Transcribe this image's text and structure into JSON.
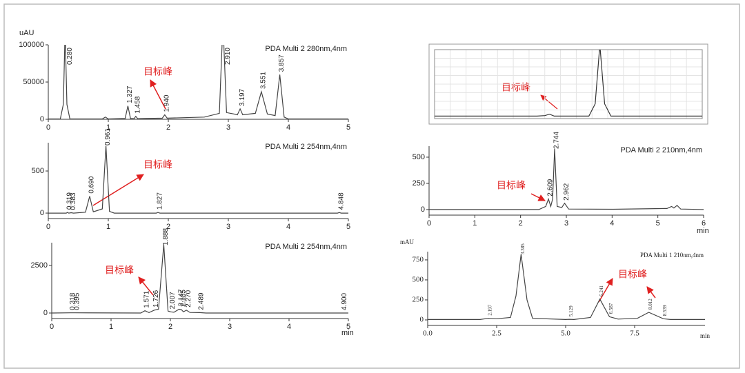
{
  "chart_data": [
    {
      "type": "line",
      "title": "PDA Multi 2 280nm,4nm",
      "y_label": "uAU",
      "annotation": "目标峰",
      "xlim": [
        0,
        5
      ],
      "ylim": [
        0,
        100000
      ],
      "xticks": [
        0,
        1,
        2,
        3,
        4,
        5
      ],
      "yticks": [
        0,
        50000,
        100000
      ],
      "color": "#444444",
      "x": [
        0,
        0.2,
        0.25,
        0.28,
        0.31,
        0.36,
        0.9,
        0.95,
        1.0,
        1.28,
        1.327,
        1.37,
        1.43,
        1.458,
        1.49,
        1.9,
        1.94,
        1.98,
        2.6,
        2.85,
        2.91,
        2.97,
        3.1,
        3.15,
        3.197,
        3.24,
        3.45,
        3.551,
        3.65,
        3.78,
        3.857,
        3.93,
        4.0,
        5.0
      ],
      "values": [
        500,
        500,
        20000,
        120000,
        20000,
        500,
        500,
        3000,
        500,
        1000,
        18000,
        1000,
        800,
        4000,
        800,
        1500,
        6000,
        1500,
        3000,
        8000,
        130000,
        9000,
        7000,
        6000,
        14000,
        6000,
        8000,
        37000,
        7000,
        5000,
        60000,
        3000,
        500,
        500
      ],
      "peaks": [
        {
          "label": "0.280",
          "x": 0.28
        },
        {
          "label": "1.327",
          "x": 1.327
        },
        {
          "label": "1.458",
          "x": 1.458
        },
        {
          "label": "1.940",
          "x": 1.94
        },
        {
          "label": "2.910",
          "x": 2.91
        },
        {
          "label": "3.197",
          "x": 3.197
        },
        {
          "label": "3.551",
          "x": 3.551
        },
        {
          "label": "3.857",
          "x": 3.857
        }
      ]
    },
    {
      "type": "line",
      "title": "PDA Multi 2 254nm,4nm",
      "annotation": "目标峰",
      "xlim": [
        0,
        5
      ],
      "ylim": [
        -65,
        836
      ],
      "xticks": [
        0,
        1,
        2,
        3,
        4,
        5
      ],
      "yticks": [
        0,
        500
      ],
      "color": "#444444",
      "x": [
        0,
        0.3,
        0.319,
        0.34,
        0.383,
        0.42,
        0.62,
        0.69,
        0.75,
        0.9,
        0.961,
        1.02,
        1.1,
        1.8,
        1.827,
        1.86,
        4.82,
        4.848,
        4.88,
        5.0
      ],
      "values": [
        0,
        0,
        8,
        0,
        5,
        0,
        10,
        200,
        15,
        50,
        800,
        20,
        0,
        0,
        8,
        0,
        0,
        6,
        0,
        0
      ],
      "peaks": [
        {
          "label": "0.319",
          "x": 0.319
        },
        {
          "label": "0.383",
          "x": 0.383
        },
        {
          "label": "0.690",
          "x": 0.69
        },
        {
          "label": "0.961",
          "x": 0.961
        },
        {
          "label": "1.827",
          "x": 1.827
        },
        {
          "label": "4.848",
          "x": 4.848
        }
      ]
    },
    {
      "type": "line",
      "title": "PDA Multi 2 254nm,4nm",
      "x_label": "min",
      "annotation": "目标峰",
      "xlim": [
        0,
        5
      ],
      "ylim": [
        -290,
        3696
      ],
      "xticks": [
        0,
        1,
        2,
        3,
        4,
        5
      ],
      "yticks": [
        0,
        2500
      ],
      "color": "#444444",
      "x": [
        0,
        0.318,
        0.395,
        1.5,
        1.571,
        1.64,
        1.726,
        1.8,
        1.888,
        1.96,
        2.007,
        2.06,
        2.147,
        2.185,
        2.22,
        2.27,
        2.33,
        2.489,
        2.6,
        4.9,
        5.0
      ],
      "values": [
        0,
        10,
        10,
        0,
        120,
        20,
        150,
        200,
        3600,
        100,
        60,
        40,
        200,
        180,
        60,
        150,
        30,
        20,
        0,
        0,
        0
      ],
      "peaks": [
        {
          "label": "0.318",
          "x": 0.318
        },
        {
          "label": "0.395",
          "x": 0.395
        },
        {
          "label": "1.571",
          "x": 1.571
        },
        {
          "label": "1.726",
          "x": 1.726
        },
        {
          "label": "1.888",
          "x": 1.888
        },
        {
          "label": "2.007",
          "x": 2.007
        },
        {
          "label": "2.147",
          "x": 2.147
        },
        {
          "label": "2.185",
          "x": 2.185
        },
        {
          "label": "2.270",
          "x": 2.27
        },
        {
          "label": "2.489",
          "x": 2.489
        },
        {
          "label": "4.900",
          "x": 4.9
        }
      ]
    },
    {
      "type": "line",
      "annotation": "目标峰",
      "xlim": [
        0,
        17
      ],
      "ylim": [
        0,
        1.4
      ],
      "color": "#333333",
      "x": [
        0,
        6.5,
        7.0,
        7.3,
        7.6,
        9.8,
        10.2,
        10.5,
        10.8,
        11.2,
        13,
        17
      ],
      "values": [
        0.05,
        0.05,
        0.06,
        0.09,
        0.05,
        0.05,
        0.3,
        1.5,
        0.3,
        0.05,
        0.05,
        0.05
      ]
    },
    {
      "type": "line",
      "title": "PDA Multi 2 210nm,4nm",
      "x_label": "min",
      "annotation": "目标峰",
      "xlim": [
        0,
        6
      ],
      "ylim": [
        -53,
        605
      ],
      "xticks": [
        0,
        1,
        2,
        3,
        4,
        5,
        6
      ],
      "yticks": [
        0,
        250,
        500
      ],
      "color": "#444444",
      "x": [
        0,
        2.4,
        2.55,
        2.609,
        2.66,
        2.7,
        2.744,
        2.8,
        2.9,
        2.962,
        3.05,
        4.0,
        5.2,
        5.3,
        5.35,
        5.42,
        5.5,
        6.0
      ],
      "values": [
        0,
        0,
        30,
        100,
        30,
        100,
        580,
        30,
        20,
        60,
        5,
        3,
        10,
        30,
        15,
        40,
        5,
        0
      ],
      "peaks": [
        {
          "label": "2.609",
          "x": 2.609
        },
        {
          "label": "2.744",
          "x": 2.744
        },
        {
          "label": "2.962",
          "x": 2.962
        }
      ]
    },
    {
      "type": "line",
      "title": "PDA Multi 1 210nm,4nm",
      "x_label": "min",
      "y_label": "mAU",
      "annotation": "目标峰",
      "xlim": [
        0,
        10.05
      ],
      "ylim": [
        -69,
        853
      ],
      "xticks": [
        {
          "value": 0,
          "label": "0.0"
        },
        {
          "value": 2.5,
          "label": "2.5"
        },
        {
          "value": 5,
          "label": "5.0"
        },
        {
          "value": 7.5,
          "label": "7.5"
        }
      ],
      "yticks": [
        0,
        250,
        500,
        750
      ],
      "color": "#444444",
      "x": [
        0,
        1.9,
        2.197,
        2.5,
        3.0,
        3.2,
        3.385,
        3.6,
        3.8,
        5.0,
        5.129,
        5.3,
        5.9,
        6.241,
        6.587,
        6.9,
        7.6,
        8.012,
        8.539,
        8.8,
        10.05
      ],
      "values": [
        5,
        5,
        20,
        15,
        30,
        300,
        820,
        250,
        20,
        5,
        8,
        5,
        30,
        260,
        40,
        10,
        20,
        95,
        15,
        5,
        5
      ],
      "peaks": [
        {
          "label": "2.197",
          "x": 2.197
        },
        {
          "label": "3.385",
          "x": 3.385
        },
        {
          "label": "5.129",
          "x": 5.129
        },
        {
          "label": "6.241",
          "x": 6.241
        },
        {
          "label": "6.587",
          "x": 6.587
        },
        {
          "label": "8.012",
          "x": 8.012
        },
        {
          "label": "8.539",
          "x": 8.539
        }
      ]
    }
  ]
}
